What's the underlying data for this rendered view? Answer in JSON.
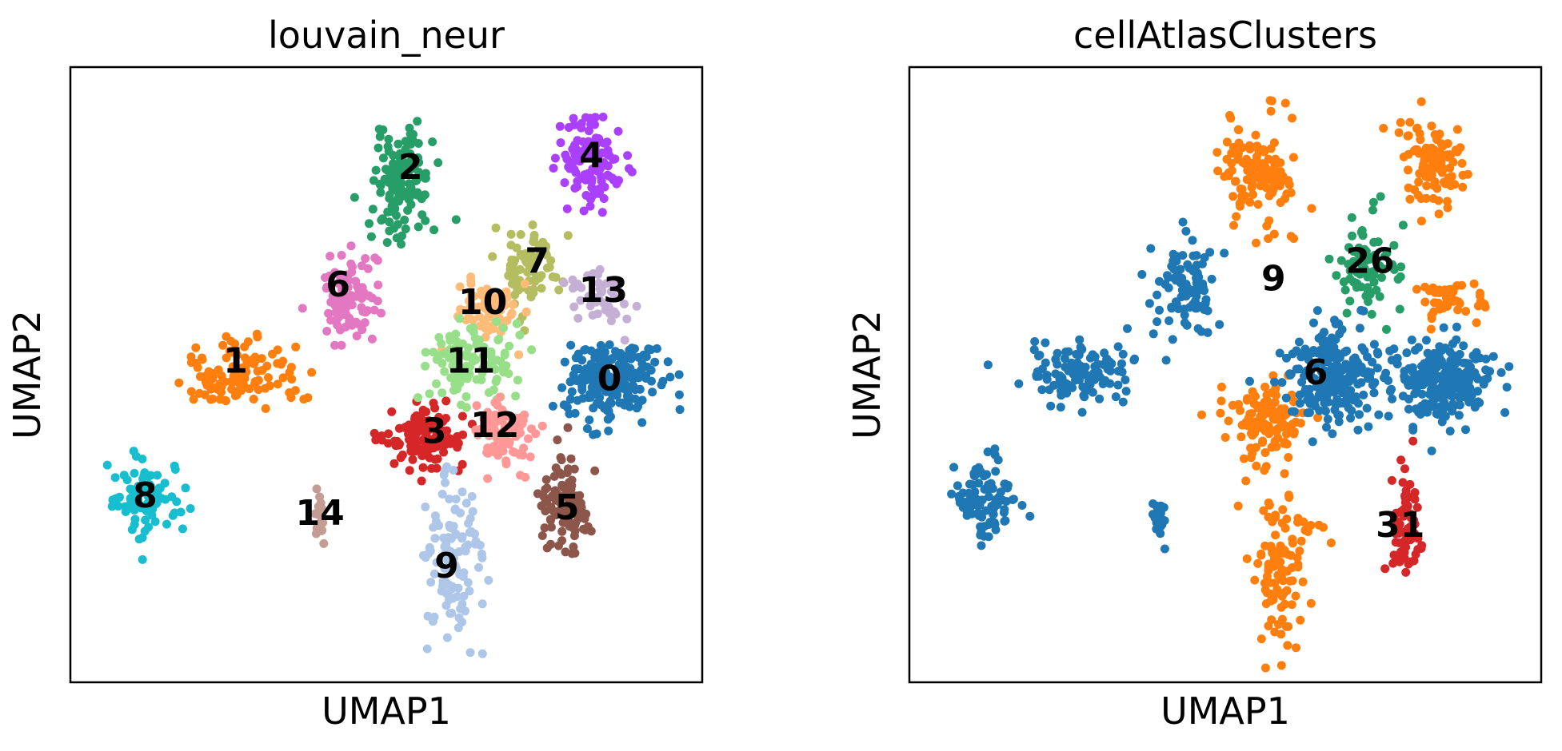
{
  "chart_data": [
    {
      "type": "scatter",
      "title": "louvain_neur",
      "xlabel": "UMAP1",
      "ylabel": "UMAP2",
      "xticks": [],
      "yticks": [],
      "grid": false,
      "legend": "none",
      "xlim": [
        0,
        10
      ],
      "ylim": [
        0,
        10
      ],
      "clusters": [
        {
          "label": "0",
          "color": "#1f77b4",
          "center": [
            8.7,
            4.9
          ],
          "spread": [
            0.75,
            0.65
          ],
          "n": 220
        },
        {
          "label": "1",
          "color": "#ff7f0e",
          "center": [
            2.6,
            5.0
          ],
          "spread": [
            0.95,
            0.55
          ],
          "n": 110
        },
        {
          "label": "2",
          "color": "#279e68",
          "center": [
            5.3,
            8.3
          ],
          "spread": [
            0.55,
            0.95
          ],
          "n": 130
        },
        {
          "label": "3",
          "color": "#d62728",
          "center": [
            5.6,
            3.9
          ],
          "spread": [
            0.65,
            0.55
          ],
          "n": 120
        },
        {
          "label": "4",
          "color": "#aa40fc",
          "center": [
            8.4,
            8.6
          ],
          "spread": [
            0.55,
            0.75
          ],
          "n": 110
        },
        {
          "label": "5",
          "color": "#8c564b",
          "center": [
            8.0,
            2.8
          ],
          "spread": [
            0.45,
            0.85
          ],
          "n": 100
        },
        {
          "label": "6",
          "color": "#e377c2",
          "center": [
            4.4,
            6.3
          ],
          "spread": [
            0.55,
            0.75
          ],
          "n": 90
        },
        {
          "label": "7",
          "color": "#b5bd61",
          "center": [
            7.4,
            6.8
          ],
          "spread": [
            0.45,
            0.85
          ],
          "n": 80
        },
        {
          "label": "8",
          "color": "#17becf",
          "center": [
            1.0,
            2.9
          ],
          "spread": [
            0.55,
            0.65
          ],
          "n": 90
        },
        {
          "label": "9",
          "color": "#aec7e8",
          "center": [
            6.1,
            1.8
          ],
          "spread": [
            0.55,
            1.5
          ],
          "n": 110
        },
        {
          "label": "10",
          "color": "#ffbb78",
          "center": [
            6.7,
            6.1
          ],
          "spread": [
            0.55,
            0.55
          ],
          "n": 80
        },
        {
          "label": "11",
          "color": "#98df8a",
          "center": [
            6.4,
            5.2
          ],
          "spread": [
            0.75,
            0.55
          ],
          "n": 110
        },
        {
          "label": "12",
          "color": "#ff9896",
          "center": [
            6.9,
            4.0
          ],
          "spread": [
            0.55,
            0.55
          ],
          "n": 90
        },
        {
          "label": "13",
          "color": "#c5b0d5",
          "center": [
            8.6,
            6.3
          ],
          "spread": [
            0.55,
            0.45
          ],
          "n": 45
        },
        {
          "label": "14",
          "color": "#c49c94",
          "center": [
            3.9,
            2.6
          ],
          "spread": [
            0.12,
            0.35
          ],
          "n": 20
        }
      ],
      "label_positions": [
        {
          "text": "0",
          "x": 8.7,
          "y": 4.9
        },
        {
          "text": "1",
          "x": 2.5,
          "y": 5.2
        },
        {
          "text": "2",
          "x": 5.4,
          "y": 8.5
        },
        {
          "text": "3",
          "x": 5.8,
          "y": 4.0
        },
        {
          "text": "4",
          "x": 8.4,
          "y": 8.7
        },
        {
          "text": "5",
          "x": 8.0,
          "y": 2.7
        },
        {
          "text": "6",
          "x": 4.2,
          "y": 6.5
        },
        {
          "text": "7",
          "x": 7.5,
          "y": 6.9
        },
        {
          "text": "8",
          "x": 1.0,
          "y": 2.9
        },
        {
          "text": "9",
          "x": 6.0,
          "y": 1.7
        },
        {
          "text": "10",
          "x": 6.6,
          "y": 6.2
        },
        {
          "text": "11",
          "x": 6.4,
          "y": 5.2
        },
        {
          "text": "12",
          "x": 6.8,
          "y": 4.1
        },
        {
          "text": "13",
          "x": 8.6,
          "y": 6.4
        },
        {
          "text": "14",
          "x": 3.9,
          "y": 2.6
        }
      ]
    },
    {
      "type": "scatter",
      "title": "cellAtlasClusters",
      "xlabel": "UMAP1",
      "ylabel": "UMAP2",
      "xticks": [],
      "yticks": [],
      "grid": false,
      "legend": "none",
      "xlim": [
        0,
        10
      ],
      "ylim": [
        0,
        10
      ],
      "clusters": [
        {
          "label": "9",
          "color": "#ff7f0e",
          "center": [
            5.5,
            8.5
          ],
          "spread": [
            0.65,
            1.0
          ],
          "n": 120
        },
        {
          "label": "9",
          "color": "#ff7f0e",
          "center": [
            8.4,
            8.6
          ],
          "spread": [
            0.55,
            0.75
          ],
          "n": 100
        },
        {
          "label": "9",
          "color": "#ff7f0e",
          "center": [
            8.7,
            6.3
          ],
          "spread": [
            0.55,
            0.45
          ],
          "n": 45
        },
        {
          "label": "9",
          "color": "#ff7f0e",
          "center": [
            5.7,
            4.3
          ],
          "spread": [
            0.65,
            0.7
          ],
          "n": 120
        },
        {
          "label": "9",
          "color": "#ff7f0e",
          "center": [
            5.9,
            1.8
          ],
          "spread": [
            0.55,
            1.5
          ],
          "n": 110
        },
        {
          "label": "6",
          "color": "#1f77b4",
          "center": [
            8.6,
            4.9
          ],
          "spread": [
            0.8,
            0.65
          ],
          "n": 230
        },
        {
          "label": "6",
          "color": "#1f77b4",
          "center": [
            6.8,
            5.0
          ],
          "spread": [
            0.8,
            0.8
          ],
          "n": 220
        },
        {
          "label": "6",
          "color": "#1f77b4",
          "center": [
            2.6,
            5.0
          ],
          "spread": [
            0.95,
            0.55
          ],
          "n": 110
        },
        {
          "label": "6",
          "color": "#1f77b4",
          "center": [
            4.4,
            6.5
          ],
          "spread": [
            0.55,
            0.75
          ],
          "n": 90
        },
        {
          "label": "6",
          "color": "#1f77b4",
          "center": [
            1.0,
            2.9
          ],
          "spread": [
            0.55,
            0.65
          ],
          "n": 90
        },
        {
          "label": "6",
          "color": "#1f77b4",
          "center": [
            3.9,
            2.6
          ],
          "spread": [
            0.12,
            0.35
          ],
          "n": 20
        },
        {
          "label": "26",
          "color": "#279e68",
          "center": [
            7.4,
            6.9
          ],
          "spread": [
            0.45,
            0.85
          ],
          "n": 80
        },
        {
          "label": "31",
          "color": "#d62728",
          "center": [
            8.0,
            2.5
          ],
          "spread": [
            0.25,
            0.9
          ],
          "n": 70
        }
      ],
      "label_positions": [
        {
          "text": "9",
          "x": 5.8,
          "y": 6.6
        },
        {
          "text": "26",
          "x": 7.4,
          "y": 6.9
        },
        {
          "text": "6",
          "x": 6.5,
          "y": 5.0
        },
        {
          "text": "31",
          "x": 7.9,
          "y": 2.4
        }
      ]
    }
  ]
}
